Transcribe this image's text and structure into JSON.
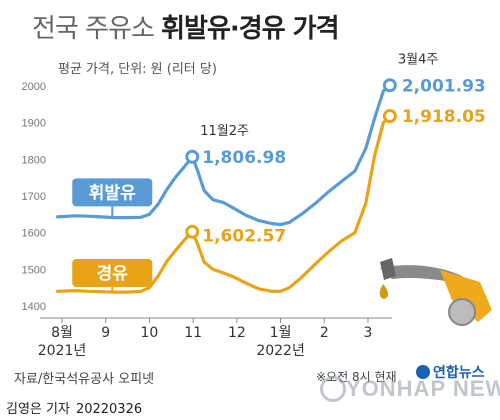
{
  "header": {
    "title_light": "전국 주유소",
    "title_bold": "휘발유·경유 가격",
    "unit": "평균 가격, 단위: 원 (리터 당)"
  },
  "footer": {
    "source": "자료/한국석유공사 오피넷",
    "note": "※오전 8시 현재",
    "brand": "연합뉴스",
    "watermark": "YONHAP NEWS",
    "reporter": "김영은 기자",
    "date": "20220326"
  },
  "colors": {
    "gasoline": "#5b9bd5",
    "diesel": "#e8a317",
    "axis": "#999999",
    "grid": "#dddddd"
  },
  "chart_data": {
    "type": "line",
    "x_ticks": [
      {
        "label": "8월",
        "sub": "2021년",
        "x": 0
      },
      {
        "label": "9",
        "x": 1
      },
      {
        "label": "10",
        "x": 2
      },
      {
        "label": "11",
        "x": 3
      },
      {
        "label": "12",
        "x": 4
      },
      {
        "label": "1월",
        "sub": "2022년",
        "x": 5
      },
      {
        "label": "2",
        "x": 6
      },
      {
        "label": "3",
        "x": 7
      }
    ],
    "ylim": [
      1400,
      2000
    ],
    "y_ticks": [
      1400,
      1500,
      1600,
      1700,
      1800,
      1900,
      2000
    ],
    "grid": false,
    "series": [
      {
        "name": "휘발유",
        "key": "gasoline",
        "x": [
          -0.1,
          0.3,
          0.6,
          0.9,
          1.2,
          1.5,
          1.8,
          2.0,
          2.2,
          2.4,
          2.6,
          2.8,
          2.98,
          3.1,
          3.25,
          3.45,
          3.7,
          3.95,
          4.2,
          4.5,
          4.8,
          5.0,
          5.2,
          5.5,
          5.8,
          6.1,
          6.4,
          6.7,
          6.95,
          7.15,
          7.35,
          7.5
        ],
        "values": [
          1643,
          1646,
          1645,
          1643,
          1641,
          1641,
          1642,
          1650,
          1678,
          1718,
          1752,
          1780,
          1806.98,
          1770,
          1715,
          1690,
          1682,
          1665,
          1648,
          1633,
          1625,
          1622,
          1628,
          1652,
          1680,
          1712,
          1740,
          1768,
          1830,
          1912,
          1986,
          2001.93
        ]
      },
      {
        "name": "경유",
        "key": "diesel",
        "x": [
          -0.1,
          0.3,
          0.6,
          0.9,
          1.2,
          1.5,
          1.8,
          2.0,
          2.2,
          2.4,
          2.6,
          2.8,
          2.98,
          3.1,
          3.25,
          3.45,
          3.7,
          3.95,
          4.2,
          4.5,
          4.8,
          5.0,
          5.2,
          5.5,
          5.8,
          6.1,
          6.4,
          6.7,
          6.95,
          7.15,
          7.35,
          7.5
        ],
        "values": [
          1440,
          1442,
          1440,
          1439,
          1438,
          1438,
          1440,
          1450,
          1482,
          1522,
          1552,
          1580,
          1602.57,
          1570,
          1520,
          1500,
          1490,
          1478,
          1463,
          1447,
          1440,
          1440,
          1450,
          1480,
          1515,
          1548,
          1578,
          1600,
          1680,
          1810,
          1900,
          1918.05
        ]
      }
    ],
    "annotations": [
      {
        "series": "gasoline",
        "period": "11월2주",
        "value_label": "1,806.98"
      },
      {
        "series": "diesel",
        "value_label": "1,602.57"
      },
      {
        "series": "gasoline",
        "period": "3월4주",
        "value_label": "2,001.93"
      },
      {
        "series": "diesel",
        "value_label": "1,918.05"
      }
    ]
  }
}
